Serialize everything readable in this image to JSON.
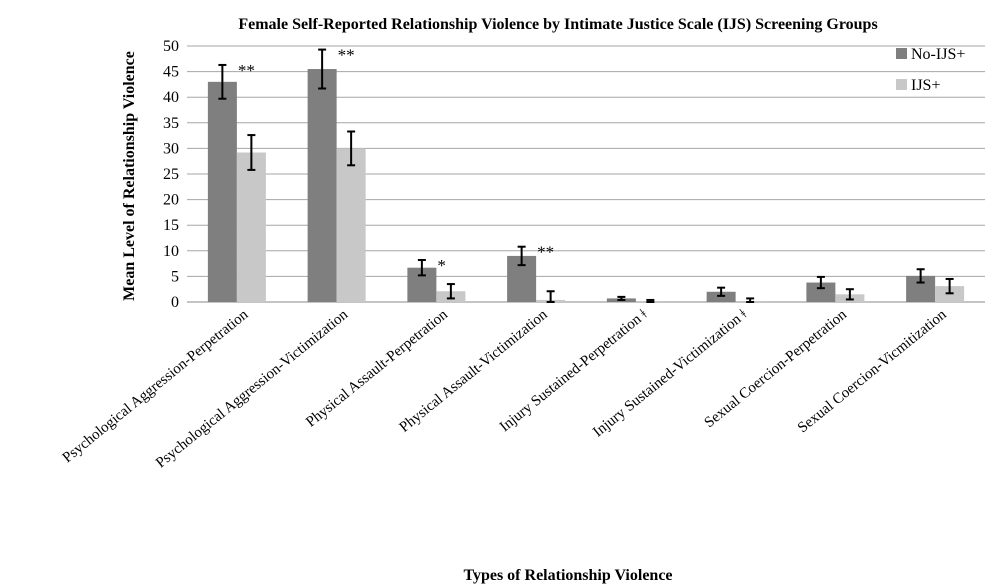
{
  "chart_data": {
    "type": "bar",
    "title": "Female Self-Reported Relationship Violence by Intimate Justice Scale (IJS) Screening Groups",
    "xlabel": "Types of Relationship Violence",
    "ylabel": "Mean Level of Relationship Violence",
    "ylim": [
      0,
      50
    ],
    "yticks": [
      0,
      5,
      10,
      15,
      20,
      25,
      30,
      35,
      40,
      45,
      50
    ],
    "grid": true,
    "legend_position": "top-right",
    "categories": [
      "Psychological Aggression-Perpetration",
      "Psychological Aggression-Victimization",
      "Physical Assault-Perpetration",
      "Physical Assault-Victimization",
      "Injury Sustained-Perpetration  ǂ",
      "Injury Sustained-Victimization  ǂ",
      "Sexual Coercion-Perpetration",
      "Sexual Coercion-Vicmitization"
    ],
    "series": [
      {
        "name": "No-IJS+",
        "color": "#7f7f7f",
        "values": [
          43.0,
          45.5,
          6.7,
          9.0,
          0.7,
          2.0,
          3.8,
          5.1
        ],
        "errors": [
          3.3,
          3.8,
          1.5,
          1.8,
          0.3,
          0.8,
          1.1,
          1.3
        ]
      },
      {
        "name": "IJS+",
        "color": "#c8c8c8",
        "values": [
          29.2,
          30.0,
          2.1,
          0.4,
          0.2,
          0.2,
          1.5,
          3.1
        ],
        "errors": [
          3.4,
          3.3,
          1.4,
          1.7,
          0.2,
          0.5,
          1.0,
          1.4
        ]
      }
    ],
    "annotations": [
      "**",
      "**",
      "*",
      "**",
      "",
      "",
      "",
      ""
    ]
  }
}
